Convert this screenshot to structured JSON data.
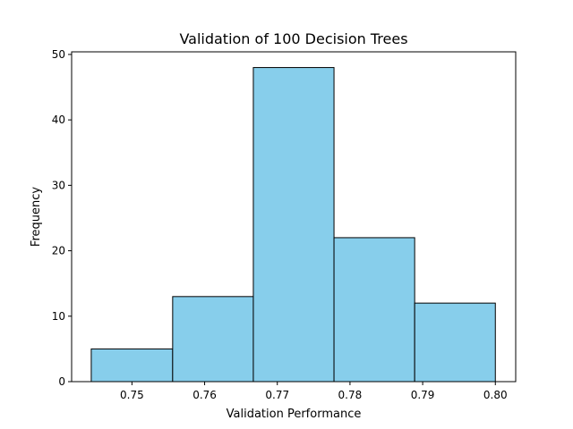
{
  "chart_data": {
    "type": "bar",
    "title": "Validation of 100 Decision Trees",
    "xlabel": "Validation Performance",
    "ylabel": "Frequency",
    "bins": [
      {
        "start": 0.7444,
        "end": 0.7556,
        "count": 5
      },
      {
        "start": 0.7556,
        "end": 0.7667,
        "count": 13
      },
      {
        "start": 0.7667,
        "end": 0.7778,
        "count": 48
      },
      {
        "start": 0.7778,
        "end": 0.7889,
        "count": 22
      },
      {
        "start": 0.7889,
        "end": 0.8,
        "count": 12
      }
    ],
    "xlim": [
      0.7417,
      0.8028
    ],
    "ylim": [
      0,
      50.4
    ],
    "xticks": [
      {
        "value": 0.75,
        "label": "0.75"
      },
      {
        "value": 0.76,
        "label": "0.76"
      },
      {
        "value": 0.77,
        "label": "0.77"
      },
      {
        "value": 0.78,
        "label": "0.78"
      },
      {
        "value": 0.79,
        "label": "0.79"
      },
      {
        "value": 0.8,
        "label": "0.80"
      }
    ],
    "yticks": [
      {
        "value": 0,
        "label": "0"
      },
      {
        "value": 10,
        "label": "10"
      },
      {
        "value": 20,
        "label": "20"
      },
      {
        "value": 30,
        "label": "30"
      },
      {
        "value": 40,
        "label": "40"
      },
      {
        "value": 50,
        "label": "50"
      }
    ],
    "bar_color": "#87CEEB",
    "edge_color": "#000000",
    "grid": false,
    "legend": "none"
  }
}
